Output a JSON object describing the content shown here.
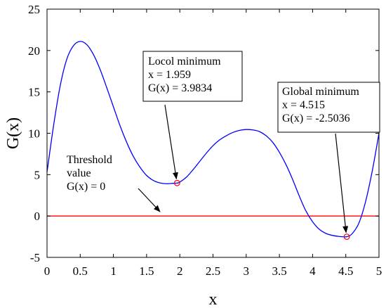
{
  "chart_data": {
    "type": "line",
    "xlabel": "x",
    "ylabel": "G(x)",
    "xlim": [
      0,
      5
    ],
    "ylim": [
      -5,
      25
    ],
    "xticks": [
      "0",
      "0.5",
      "1",
      "1.5",
      "2",
      "2.5",
      "3",
      "3.5",
      "4",
      "4.5",
      "5"
    ],
    "yticks": [
      "-5",
      "0",
      "5",
      "10",
      "15",
      "20",
      "25"
    ],
    "grid": false,
    "colors": {
      "curve": "#0000ff",
      "threshold": "#ff0000",
      "marker": "#ff0000",
      "text": "#000000"
    },
    "series": [
      {
        "x": [
          0,
          0.1,
          0.2,
          0.3,
          0.4,
          0.5,
          0.6,
          0.7,
          0.8,
          0.9,
          1.0,
          1.1,
          1.2,
          1.3,
          1.4,
          1.5,
          1.6,
          1.7,
          1.8,
          1.9,
          1.959,
          2.0,
          2.1,
          2.2,
          2.3,
          2.4,
          2.5,
          2.6,
          2.7,
          2.8,
          2.9,
          3.0,
          3.1,
          3.2,
          3.3,
          3.4,
          3.5,
          3.6,
          3.7,
          3.8,
          3.9,
          4.0,
          4.1,
          4.2,
          4.3,
          4.4,
          4.515,
          4.6,
          4.7,
          4.8,
          4.9,
          5.0
        ],
        "y": [
          5.3,
          11.0,
          15.8,
          19.0,
          20.6,
          21.1,
          20.7,
          19.5,
          17.7,
          15.5,
          13.2,
          10.9,
          8.9,
          7.2,
          5.9,
          4.9,
          4.3,
          4.0,
          3.9,
          3.95,
          3.98,
          4.1,
          4.7,
          5.6,
          6.6,
          7.6,
          8.5,
          9.2,
          9.7,
          10.1,
          10.35,
          10.45,
          10.4,
          10.2,
          9.7,
          8.9,
          7.7,
          6.2,
          4.4,
          2.4,
          0.6,
          -0.7,
          -1.6,
          -2.1,
          -2.35,
          -2.47,
          -2.5036,
          -2.1,
          -0.8,
          1.8,
          5.5,
          10.0
        ]
      }
    ],
    "threshold": {
      "y": 0
    },
    "markers": [
      {
        "x": 1.959,
        "y": 3.9834
      },
      {
        "x": 4.515,
        "y": -2.5036
      }
    ],
    "annotations": [
      {
        "lines": [
          "Locol minimum",
          "x = 1.959",
          "G(x) = 3.9834"
        ],
        "boxed": true
      },
      {
        "lines": [
          "Global minimum",
          "x = 4.515",
          "G(x) = -2.5036"
        ],
        "boxed": true
      },
      {
        "lines": [
          "Threshold",
          "value",
          "G(x) = 0"
        ],
        "boxed": false
      }
    ]
  }
}
